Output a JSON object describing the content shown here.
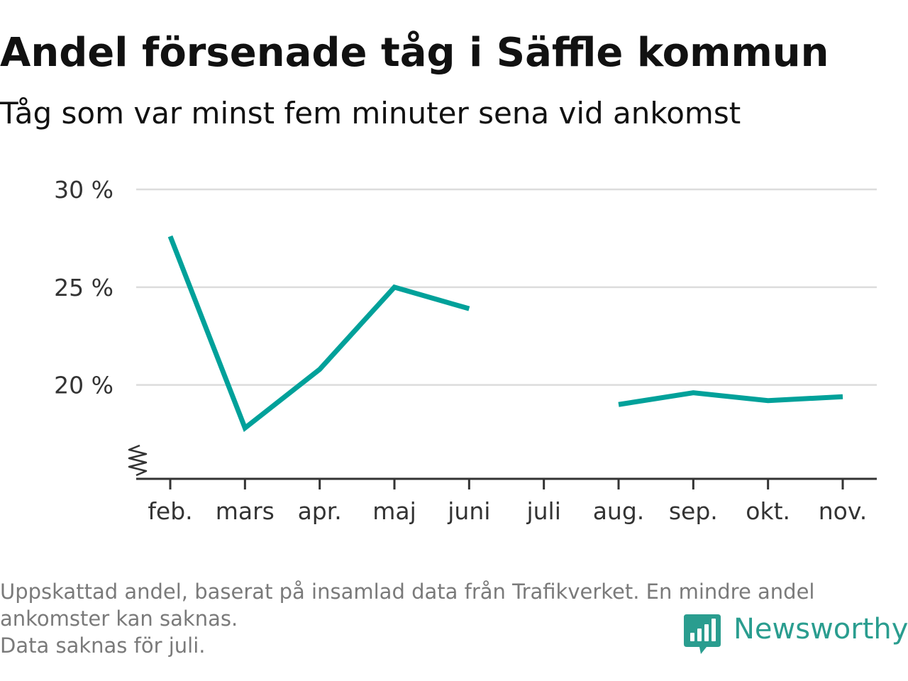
{
  "header": {
    "title": "Andel försenade tåg i Säffle kommun",
    "subtitle": "Tåg som var minst fem minuter sena vid ankomst"
  },
  "chart_data": {
    "type": "line",
    "categories": [
      "feb.",
      "mars",
      "apr.",
      "maj",
      "juni",
      "juli",
      "aug.",
      "sep.",
      "okt.",
      "nov."
    ],
    "series": [
      {
        "values": [
          27.6,
          17.8,
          20.8,
          25.0,
          23.9,
          null,
          19.0,
          19.6,
          19.2,
          19.4
        ]
      }
    ],
    "ylim": [
      15.2,
      30
    ],
    "yticks": [
      20,
      25,
      30
    ],
    "ytick_labels": [
      "20 %",
      "25 %",
      "30 %"
    ],
    "y_axis_break": true,
    "grid": true,
    "line_color": "#00a19a"
  },
  "footnote": {
    "lines": [
      "Uppskattad andel, baserat på insamlad data från Trafikverket. En mindre andel",
      "ankomster kan saknas.",
      "Data saknas för juli."
    ]
  },
  "brand": {
    "name": "Newsworthy",
    "icon": "newsworthy-logo-icon",
    "color": "#2a9d8f"
  }
}
